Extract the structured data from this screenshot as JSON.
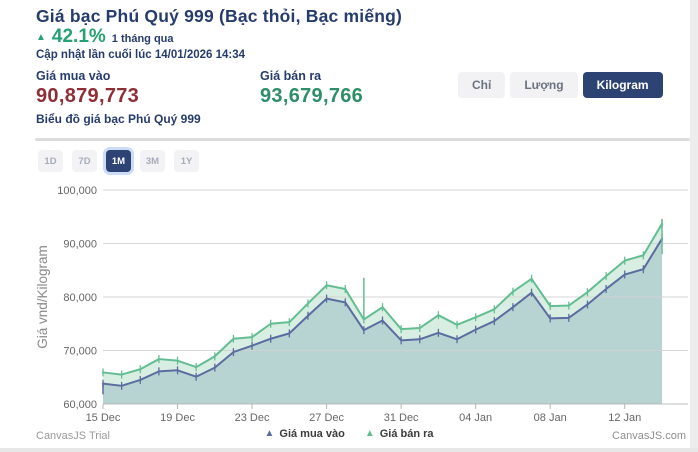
{
  "header": {
    "title": "Giá bạc Phú Quý 999 (Bạc thỏi, Bạc miếng)",
    "change_arrow_icon": "▲",
    "change_pct": "42.1%",
    "change_period": "1 tháng qua",
    "last_updated": "Cập nhật lần cuối lúc 14/01/2026 14:34"
  },
  "prices": {
    "buy_label": "Giá mua vào",
    "buy_value": "90,879,773",
    "sell_label": "Giá bán ra",
    "sell_value": "93,679,766"
  },
  "unit_toggle": [
    {
      "label": "Chỉ",
      "selected": false
    },
    {
      "label": "Lượng",
      "selected": false
    },
    {
      "label": "Kilogram",
      "selected": true
    }
  ],
  "chart_heading": "Biểu đồ giá bạc Phú Quý 999",
  "ranges": [
    {
      "label": "1D",
      "selected": false
    },
    {
      "label": "7D",
      "selected": false
    },
    {
      "label": "1M",
      "selected": true
    },
    {
      "label": "3M",
      "selected": false
    },
    {
      "label": "1Y",
      "selected": false
    }
  ],
  "chart_data": {
    "type": "line",
    "title": "",
    "xlabel": "",
    "ylabel": "Giá vnd/Kilogram",
    "ylim": [
      60000,
      100000
    ],
    "ytick_step": 10000,
    "grid": true,
    "legend_position": "bottom",
    "xtick_every": 4,
    "x": [
      "15 Dec",
      "16 Dec",
      "17 Dec",
      "18 Dec",
      "19 Dec",
      "20 Dec",
      "21 Dec",
      "22 Dec",
      "23 Dec",
      "24 Dec",
      "25 Dec",
      "26 Dec",
      "27 Dec",
      "28 Dec",
      "29 Dec",
      "30 Dec",
      "31 Dec",
      "01 Jan",
      "02 Jan",
      "03 Jan",
      "04 Jan",
      "05 Jan",
      "06 Jan",
      "07 Jan",
      "08 Jan",
      "09 Jan",
      "10 Jan",
      "11 Jan",
      "12 Jan",
      "13 Jan",
      "14 Jan"
    ],
    "series": [
      {
        "name": "Giá mua vào",
        "color": "#5a6d9f",
        "fill": "#b7d3d2",
        "values": [
          63800,
          63400,
          64500,
          66100,
          66300,
          65100,
          66800,
          69700,
          70900,
          72200,
          73200,
          76500,
          79700,
          79000,
          73800,
          75600,
          71900,
          72100,
          73300,
          72100,
          73900,
          75500,
          78100,
          80800,
          76000,
          76100,
          78600,
          81500,
          84200,
          85200,
          90880
        ]
      },
      {
        "name": "Giá bán ra",
        "color": "#63bd92",
        "fill": "#d9eee2",
        "values": [
          65900,
          65500,
          66500,
          68400,
          68100,
          66900,
          68900,
          72200,
          72500,
          75000,
          75300,
          78800,
          82200,
          81500,
          75800,
          78100,
          74000,
          74200,
          76600,
          74800,
          76200,
          77700,
          81000,
          83400,
          78300,
          78400,
          80900,
          83900,
          86800,
          87800,
          93680
        ]
      }
    ],
    "spikes": [
      {
        "series": "Giá mua vào",
        "x": "15 Dec",
        "high": 63800,
        "low": 61800
      },
      {
        "series": "Giá bán ra",
        "x": "29 Dec",
        "high": 83600,
        "low": 75800
      },
      {
        "series": "Giá bán ra",
        "x": "14 Jan",
        "high": 94600,
        "low": 88000
      }
    ]
  },
  "footer": {
    "trial": "CanvasJS Trial",
    "brand": "CanvasJS.com"
  },
  "colors": {
    "navy_text": "#263c6d",
    "accent_green": "#27a173",
    "buy_red": "#8e2f36",
    "sell_green": "#2e8e67",
    "button_navy": "#2d4373",
    "gridline": "#d2d2d2",
    "axis_line": "#b5b5b5",
    "tick_label": "#666666"
  }
}
